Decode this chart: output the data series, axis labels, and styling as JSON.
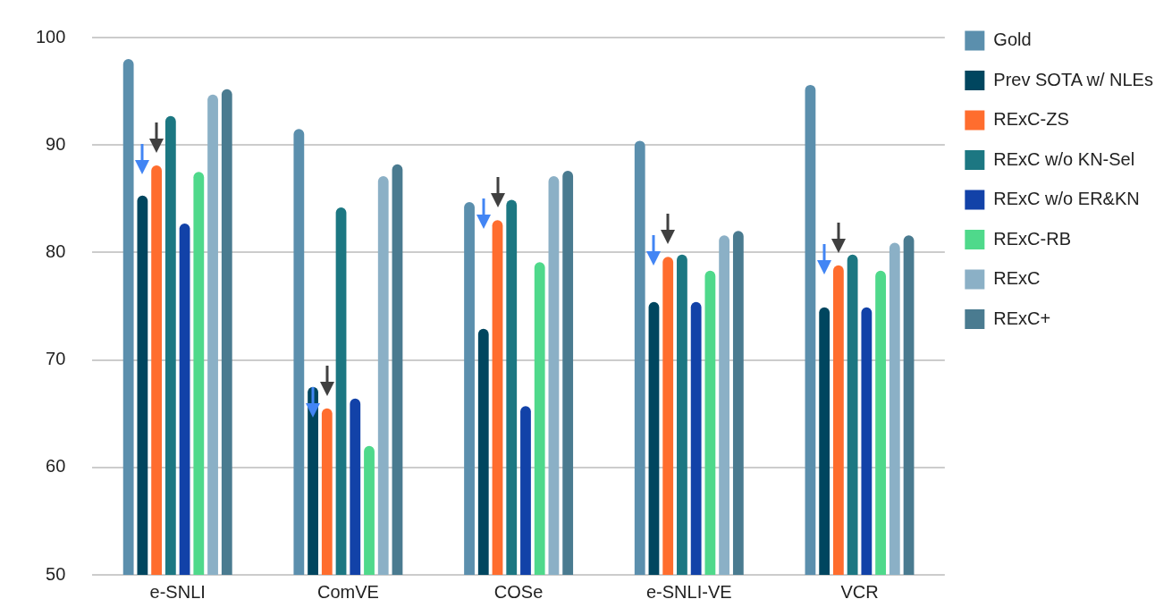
{
  "chart_data": {
    "type": "bar",
    "categories": [
      "e-SNLI",
      "ComVE",
      "COSe",
      "e-SNLI-VE",
      "VCR"
    ],
    "series": [
      {
        "name": "Gold",
        "color": "#5b8fad",
        "values": [
          98.0,
          91.5,
          84.7,
          90.4,
          95.6
        ]
      },
      {
        "name": "Prev SOTA w/ NLEs",
        "color": "#00465f",
        "values": [
          85.3,
          67.5,
          72.9,
          75.4,
          74.9
        ]
      },
      {
        "name": "RExC-ZS",
        "color": "#ff6d2e",
        "values": [
          88.1,
          65.5,
          83.0,
          79.6,
          78.8
        ]
      },
      {
        "name": "RExC w/o KN-Sel",
        "color": "#1c7782",
        "values": [
          92.7,
          84.2,
          84.9,
          79.8,
          79.8
        ]
      },
      {
        "name": "RExC w/o ER&KN",
        "color": "#1242a8",
        "values": [
          82.7,
          66.4,
          65.7,
          75.4,
          74.9
        ]
      },
      {
        "name": "RExC-RB",
        "color": "#4fd98b",
        "values": [
          87.5,
          62.0,
          79.1,
          78.3,
          78.3
        ]
      },
      {
        "name": "RExC",
        "color": "#8bb0c6",
        "values": [
          94.7,
          87.1,
          87.1,
          81.6,
          80.9
        ]
      },
      {
        "name": "RExC+",
        "color": "#4a7b90",
        "values": [
          95.2,
          88.2,
          87.6,
          82.0,
          81.6
        ]
      }
    ],
    "ylim": [
      50,
      100
    ],
    "yticks": [
      50,
      60,
      70,
      80,
      90,
      100
    ],
    "grid": "y",
    "legend": "right"
  }
}
